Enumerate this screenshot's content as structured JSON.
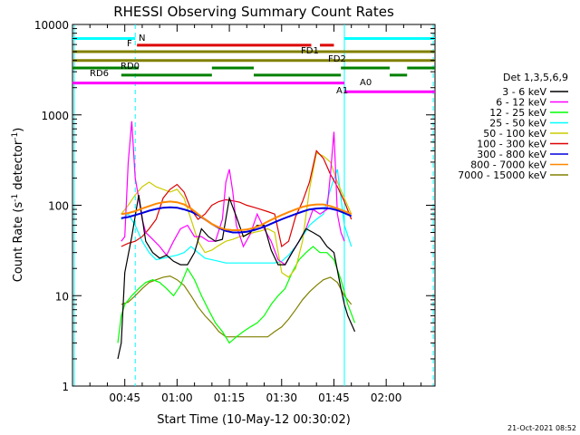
{
  "chart_data": {
    "type": "line",
    "title": "RHESSI Observing Summary Count Rates",
    "xlabel": "Start Time (10-May-12 00:30:02)",
    "ylabel_main": "Count Rate (s",
    "ylabel_sup1": "-1",
    "ylabel_mid": " detector",
    "ylabel_sup2": "-1",
    "ylabel_end": ")",
    "yscale": "log",
    "ylim": [
      1,
      10000
    ],
    "xlim_minutes": [
      30.0,
      134.0
    ],
    "x_ticks": [
      {
        "label": "00:45",
        "minute": 45
      },
      {
        "label": "01:00",
        "minute": 60
      },
      {
        "label": "01:15",
        "minute": 75
      },
      {
        "label": "01:30",
        "minute": 90
      },
      {
        "label": "01:45",
        "minute": 105
      },
      {
        "label": "02:00",
        "minute": 120
      }
    ],
    "y_ticks": [
      {
        "label": "1",
        "value": 1
      },
      {
        "label": "10",
        "value": 10
      },
      {
        "label": "100",
        "value": 100
      },
      {
        "label": "1000",
        "value": 1000
      },
      {
        "label": "10000",
        "value": 10000
      }
    ],
    "legend_title": "Det 1,3,5,6,9",
    "series": [
      {
        "name": "3 - 6 keV",
        "color": "#000000",
        "x": [
          43,
          44,
          45,
          47,
          49,
          51,
          53,
          55,
          57,
          59,
          61,
          63,
          65,
          67,
          69,
          71,
          73,
          75,
          77,
          79,
          81,
          83,
          85,
          87,
          89,
          91,
          93,
          95,
          97,
          99,
          101,
          103,
          105,
          107,
          108,
          109,
          111
        ],
        "y": [
          2,
          3,
          18,
          45,
          130,
          40,
          30,
          26,
          28,
          24,
          22,
          22,
          30,
          55,
          45,
          40,
          42,
          120,
          75,
          45,
          50,
          60,
          60,
          32,
          22,
          22,
          30,
          40,
          55,
          50,
          45,
          35,
          30,
          12,
          8,
          6,
          4
        ]
      },
      {
        "name": "6 - 12 keV",
        "color": "#ff00ff",
        "x": [
          44,
          45,
          46,
          47,
          48,
          49,
          50,
          51,
          53,
          55,
          57,
          59,
          61,
          63,
          65,
          67,
          69,
          71,
          73,
          74,
          75,
          76,
          77,
          79,
          81,
          83,
          85,
          87,
          89,
          91,
          93,
          95,
          97,
          99,
          101,
          103,
          104,
          105,
          106,
          107,
          108
        ],
        "y": [
          40,
          45,
          300,
          850,
          200,
          120,
          70,
          50,
          42,
          35,
          28,
          40,
          55,
          60,
          45,
          45,
          40,
          40,
          70,
          180,
          250,
          140,
          60,
          35,
          48,
          80,
          55,
          40,
          25,
          22,
          30,
          40,
          55,
          90,
          80,
          90,
          220,
          650,
          80,
          50,
          40
        ]
      },
      {
        "name": "12 - 25 keV",
        "color": "#00ff00",
        "x": [
          43,
          44,
          45,
          47,
          49,
          51,
          53,
          55,
          57,
          59,
          61,
          63,
          65,
          67,
          69,
          71,
          73,
          75,
          77,
          79,
          81,
          83,
          85,
          87,
          89,
          91,
          93,
          95,
          97,
          99,
          101,
          103,
          105,
          107,
          109,
          111
        ],
        "y": [
          3,
          6,
          8,
          10,
          12,
          14,
          15,
          14,
          12,
          10,
          13,
          20,
          15,
          10,
          7,
          5,
          4,
          3,
          3.5,
          4,
          4.5,
          5,
          6,
          8,
          10,
          12,
          18,
          25,
          30,
          35,
          30,
          30,
          25,
          15,
          8,
          5
        ]
      },
      {
        "name": "25 - 50 keV",
        "color": "#00ffff",
        "x": [
          44,
          45,
          46,
          48,
          50,
          52,
          54,
          56,
          58,
          60,
          62,
          64,
          66,
          68,
          70,
          72,
          74,
          76,
          78,
          80,
          82,
          84,
          86,
          88,
          90,
          92,
          94,
          96,
          98,
          100,
          102,
          104,
          106,
          108,
          110
        ],
        "y": [
          70,
          75,
          80,
          60,
          40,
          30,
          25,
          26,
          27,
          28,
          30,
          35,
          30,
          26,
          25,
          24,
          23,
          23,
          23,
          23,
          23,
          23,
          23,
          23,
          24,
          28,
          35,
          45,
          60,
          70,
          80,
          150,
          250,
          60,
          35
        ]
      },
      {
        "name": "50 - 100 keV",
        "color": "#cccc00",
        "x": [
          44,
          46,
          48,
          50,
          52,
          54,
          56,
          58,
          60,
          62,
          64,
          66,
          68,
          70,
          72,
          74,
          76,
          78,
          80,
          82,
          84,
          86,
          88,
          90,
          92,
          94,
          96,
          98,
          100,
          102,
          104,
          106,
          108,
          110
        ],
        "y": [
          80,
          100,
          130,
          160,
          180,
          160,
          150,
          140,
          150,
          120,
          70,
          40,
          30,
          32,
          36,
          40,
          42,
          45,
          47,
          50,
          52,
          55,
          50,
          18,
          16,
          20,
          40,
          150,
          380,
          350,
          300,
          180,
          120,
          80
        ]
      },
      {
        "name": "100 - 300 keV",
        "color": "#dd0000",
        "x": [
          44,
          46,
          48,
          50,
          52,
          54,
          56,
          58,
          60,
          62,
          64,
          66,
          68,
          70,
          72,
          74,
          76,
          78,
          80,
          82,
          84,
          86,
          88,
          90,
          92,
          94,
          96,
          98,
          100,
          102,
          104,
          106,
          108,
          110
        ],
        "y": [
          35,
          38,
          40,
          45,
          55,
          70,
          120,
          150,
          170,
          140,
          90,
          70,
          80,
          100,
          110,
          115,
          112,
          108,
          100,
          95,
          90,
          85,
          80,
          35,
          40,
          75,
          110,
          180,
          400,
          330,
          220,
          160,
          110,
          70
        ]
      },
      {
        "name": "300 - 800 keV",
        "color": "#0000dd",
        "x": [
          44,
          46,
          48,
          50,
          52,
          54,
          56,
          58,
          60,
          62,
          64,
          66,
          68,
          70,
          72,
          74,
          76,
          78,
          80,
          82,
          84,
          86,
          88,
          90,
          92,
          94,
          96,
          98,
          100,
          102,
          104,
          106,
          108,
          110
        ],
        "y": [
          72,
          74,
          78,
          82,
          87,
          91,
          94,
          95,
          94,
          90,
          85,
          78,
          70,
          62,
          56,
          52,
          50,
          50,
          51,
          53,
          56,
          60,
          65,
          70,
          75,
          80,
          85,
          90,
          92,
          93,
          92,
          88,
          82,
          76
        ]
      },
      {
        "name": "800 - 7000 keV",
        "color": "#ff8800",
        "x": [
          44,
          46,
          48,
          50,
          52,
          54,
          56,
          58,
          60,
          62,
          64,
          66,
          68,
          70,
          72,
          74,
          76,
          78,
          80,
          82,
          84,
          86,
          88,
          90,
          92,
          94,
          96,
          98,
          100,
          102,
          104,
          106,
          108,
          110
        ],
        "y": [
          80,
          82,
          86,
          92,
          98,
          104,
          108,
          110,
          108,
          102,
          92,
          80,
          70,
          62,
          57,
          54,
          53,
          53,
          54,
          56,
          60,
          66,
          72,
          78,
          84,
          90,
          96,
          100,
          102,
          102,
          98,
          92,
          86,
          80
        ]
      },
      {
        "name": "7000 - 15000 keV",
        "color": "#808000",
        "x": [
          44,
          46,
          48,
          50,
          52,
          54,
          56,
          58,
          60,
          62,
          64,
          66,
          68,
          70,
          72,
          74,
          76,
          78,
          80,
          82,
          84,
          86,
          88,
          90,
          92,
          94,
          96,
          98,
          100,
          102,
          104,
          106,
          108,
          110
        ],
        "y": [
          8,
          8.5,
          10,
          12,
          14,
          15,
          16,
          16.5,
          15,
          13,
          10,
          7.5,
          6,
          5,
          4,
          3.5,
          3.5,
          3.5,
          3.5,
          3.5,
          3.5,
          3.5,
          4,
          4.5,
          5.5,
          7,
          9,
          11,
          13,
          15,
          16,
          14,
          10,
          8
        ]
      }
    ],
    "state_bars": [
      {
        "label": "N",
        "color": "#00ffff",
        "row_value": 7000,
        "segments": [
          [
            30,
            48
          ],
          [
            108,
            134
          ]
        ]
      },
      {
        "label": "F",
        "color": "#dd0000",
        "row_value": 5900,
        "segments": [
          [
            48.5,
            98.5
          ],
          [
            101,
            105
          ]
        ]
      },
      {
        "label": "FD1",
        "color": "#808000",
        "row_value": 5000,
        "segments": [
          [
            30,
            134
          ]
        ]
      },
      {
        "label": "FD2",
        "color": "#808000",
        "row_value": 4000,
        "segments": [
          [
            30,
            134
          ]
        ]
      },
      {
        "label": "RD0",
        "color": "#008000",
        "row_value": 3300,
        "segments": [
          [
            30,
            49
          ],
          [
            70,
            82
          ],
          [
            107,
            121
          ],
          [
            126,
            134
          ]
        ]
      },
      {
        "label": "RD6",
        "color": "#008000",
        "row_value": 2750,
        "segments": [
          [
            44,
            70
          ],
          [
            82,
            107
          ],
          [
            121,
            126
          ]
        ]
      },
      {
        "label": "A0",
        "color": "#ff00ff",
        "row_value": 2250,
        "segments": [
          [
            30,
            108
          ]
        ]
      },
      {
        "label": "A1",
        "color": "#ff00ff",
        "row_value": 1800,
        "segments": [
          [
            108,
            134
          ]
        ]
      }
    ],
    "markers": [
      {
        "minute": 30.5,
        "color": "#00ffff",
        "style": "solid"
      },
      {
        "minute": 48,
        "color": "#00ffff",
        "style": "dashed"
      },
      {
        "minute": 108,
        "color": "#00ffff",
        "style": "solid"
      },
      {
        "minute": 133.5,
        "color": "#00ffff",
        "style": "dashed"
      }
    ],
    "footer_timestamp": "21-Oct-2021 08:52"
  }
}
